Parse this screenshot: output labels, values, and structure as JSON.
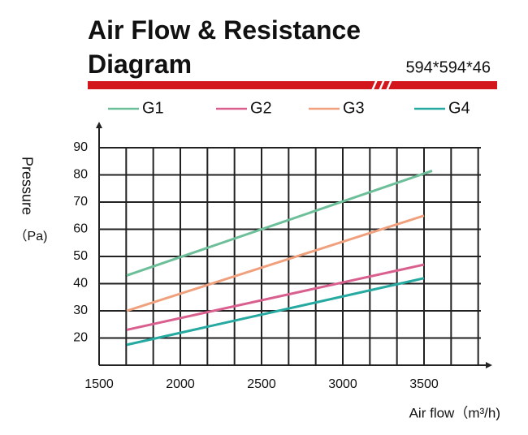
{
  "chart_data": {
    "type": "line",
    "title": "Air Flow & Resistance Diagram",
    "subtitle": "594*594*46",
    "y_label": "Pressure",
    "y_unit": "（Pa)",
    "x_label": "Air flow（m³/h)",
    "xlim": [
      1500,
      3850
    ],
    "xticks": [
      1500,
      2000,
      2500,
      3000,
      3500
    ],
    "x_grid_subdivisions": 3,
    "ylim": [
      10,
      90
    ],
    "yticks": [
      20,
      30,
      40,
      50,
      60,
      70,
      80,
      90
    ],
    "grid": true,
    "series": [
      {
        "name": "G1",
        "color": "#6dbf9a",
        "x": [
          1670,
          3550
        ],
        "values": [
          43,
          81.5
        ]
      },
      {
        "name": "G2",
        "color": "#d9608e",
        "x": [
          1670,
          3500
        ],
        "values": [
          23,
          47
        ]
      },
      {
        "name": "G3",
        "color": "#f0a07c",
        "x": [
          1670,
          3500
        ],
        "values": [
          30,
          65
        ]
      },
      {
        "name": "G4",
        "color": "#26a9a0",
        "x": [
          1670,
          3500
        ],
        "values": [
          17.5,
          42
        ]
      }
    ]
  }
}
